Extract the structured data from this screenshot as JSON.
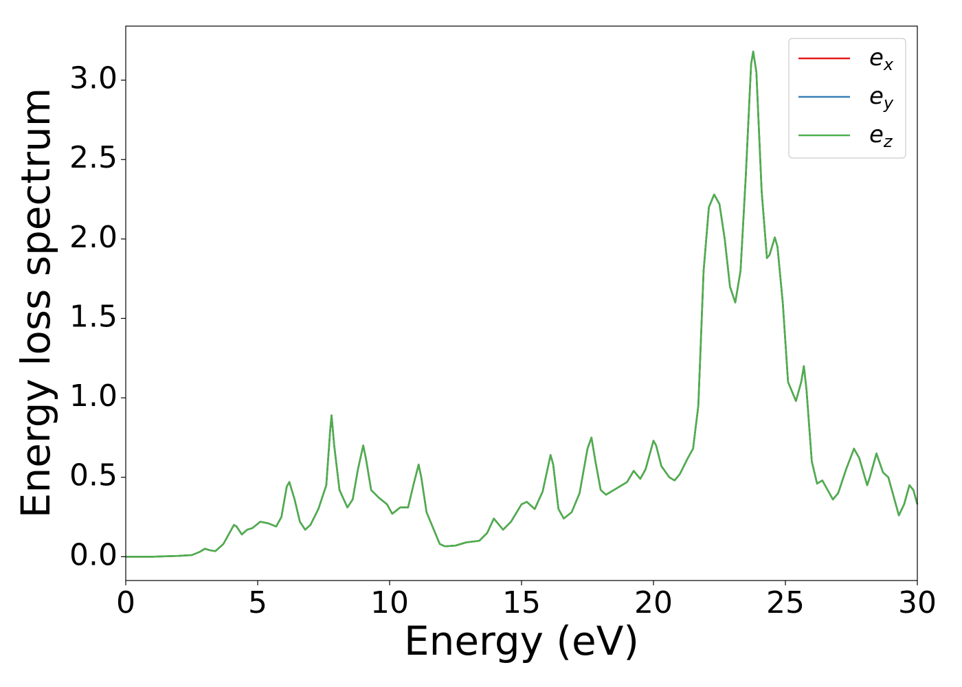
{
  "chart_data": {
    "type": "line",
    "xlabel": "Energy (eV)",
    "ylabel": "Energy loss spectrum",
    "xlim": [
      0,
      30
    ],
    "ylim": [
      -0.15,
      3.34
    ],
    "xticks": [
      0,
      5,
      10,
      15,
      20,
      25,
      30
    ],
    "yticks": [
      {
        "value": 0,
        "label": "0.0"
      },
      {
        "value": 0.5,
        "label": "0.5"
      },
      {
        "value": 1,
        "label": "1.0"
      },
      {
        "value": 1.5,
        "label": "1.5"
      },
      {
        "value": 2,
        "label": "2.0"
      },
      {
        "value": 2.5,
        "label": "2.5"
      },
      {
        "value": 3,
        "label": "3.0"
      }
    ],
    "legend": "upper right",
    "x": [
      0,
      1,
      2,
      2.5,
      2.8,
      3.0,
      3.2,
      3.4,
      3.7,
      4.0,
      4.1,
      4.2,
      4.4,
      4.6,
      4.8,
      5.1,
      5.4,
      5.7,
      5.9,
      6.1,
      6.2,
      6.4,
      6.6,
      6.8,
      7.0,
      7.3,
      7.6,
      7.75,
      7.8,
      7.9,
      8.1,
      8.4,
      8.6,
      8.8,
      9.0,
      9.1,
      9.3,
      9.6,
      9.9,
      10.1,
      10.4,
      10.7,
      10.9,
      11.1,
      11.2,
      11.4,
      11.6,
      11.9,
      12.1,
      12.5,
      12.9,
      13.4,
      13.7,
      13.95,
      14.3,
      14.6,
      15.0,
      15.2,
      15.5,
      15.8,
      16.1,
      16.2,
      16.4,
      16.6,
      16.9,
      17.2,
      17.5,
      17.65,
      17.8,
      18.0,
      18.2,
      18.6,
      19.0,
      19.25,
      19.5,
      19.7,
      20.0,
      20.1,
      20.3,
      20.6,
      20.8,
      21.0,
      21.3,
      21.5,
      21.7,
      21.9,
      22.1,
      22.3,
      22.5,
      22.7,
      22.9,
      23.1,
      23.3,
      23.5,
      23.7,
      23.78,
      23.9,
      24.1,
      24.3,
      24.4,
      24.6,
      24.7,
      24.9,
      25.1,
      25.4,
      25.6,
      25.7,
      25.8,
      26.0,
      26.2,
      26.4,
      26.6,
      26.8,
      27.0,
      27.3,
      27.6,
      27.8,
      28.1,
      28.2,
      28.45,
      28.7,
      28.9,
      29.1,
      29.3,
      29.5,
      29.7,
      29.85,
      30.0
    ],
    "series": [
      {
        "name": "ex",
        "color": "#e41a1c",
        "values": [
          0,
          0,
          0.005,
          0.01,
          0.03,
          0.05,
          0.04,
          0.035,
          0.08,
          0.17,
          0.2,
          0.19,
          0.14,
          0.17,
          0.18,
          0.22,
          0.21,
          0.19,
          0.25,
          0.44,
          0.47,
          0.36,
          0.22,
          0.17,
          0.2,
          0.3,
          0.45,
          0.8,
          0.89,
          0.7,
          0.42,
          0.31,
          0.36,
          0.55,
          0.7,
          0.62,
          0.42,
          0.37,
          0.33,
          0.27,
          0.31,
          0.31,
          0.45,
          0.58,
          0.5,
          0.28,
          0.2,
          0.08,
          0.065,
          0.07,
          0.09,
          0.1,
          0.15,
          0.24,
          0.17,
          0.22,
          0.33,
          0.345,
          0.3,
          0.41,
          0.64,
          0.58,
          0.3,
          0.24,
          0.28,
          0.4,
          0.68,
          0.75,
          0.6,
          0.42,
          0.39,
          0.43,
          0.47,
          0.54,
          0.49,
          0.55,
          0.73,
          0.7,
          0.57,
          0.5,
          0.48,
          0.52,
          0.62,
          0.68,
          0.95,
          1.8,
          2.2,
          2.28,
          2.22,
          2.0,
          1.7,
          1.6,
          1.8,
          2.4,
          3.1,
          3.18,
          3.05,
          2.3,
          1.88,
          1.9,
          2.01,
          1.95,
          1.6,
          1.1,
          0.98,
          1.1,
          1.2,
          1.05,
          0.6,
          0.46,
          0.48,
          0.42,
          0.36,
          0.4,
          0.55,
          0.68,
          0.62,
          0.45,
          0.5,
          0.65,
          0.53,
          0.5,
          0.38,
          0.26,
          0.33,
          0.45,
          0.42,
          0.33
        ]
      },
      {
        "name": "ey",
        "color": "#377eb8",
        "values": [
          0,
          0,
          0.005,
          0.01,
          0.03,
          0.05,
          0.04,
          0.035,
          0.08,
          0.17,
          0.2,
          0.19,
          0.14,
          0.17,
          0.18,
          0.22,
          0.21,
          0.19,
          0.25,
          0.44,
          0.47,
          0.36,
          0.22,
          0.17,
          0.2,
          0.3,
          0.45,
          0.8,
          0.89,
          0.7,
          0.42,
          0.31,
          0.36,
          0.55,
          0.7,
          0.62,
          0.42,
          0.37,
          0.33,
          0.27,
          0.31,
          0.31,
          0.45,
          0.58,
          0.5,
          0.28,
          0.2,
          0.08,
          0.065,
          0.07,
          0.09,
          0.1,
          0.15,
          0.24,
          0.17,
          0.22,
          0.33,
          0.345,
          0.3,
          0.41,
          0.64,
          0.58,
          0.3,
          0.24,
          0.28,
          0.4,
          0.68,
          0.75,
          0.6,
          0.42,
          0.39,
          0.43,
          0.47,
          0.54,
          0.49,
          0.55,
          0.73,
          0.7,
          0.57,
          0.5,
          0.48,
          0.52,
          0.62,
          0.68,
          0.95,
          1.8,
          2.2,
          2.28,
          2.22,
          2.0,
          1.7,
          1.6,
          1.8,
          2.4,
          3.1,
          3.18,
          3.05,
          2.3,
          1.88,
          1.9,
          2.01,
          1.95,
          1.6,
          1.1,
          0.98,
          1.1,
          1.2,
          1.05,
          0.6,
          0.46,
          0.48,
          0.42,
          0.36,
          0.4,
          0.55,
          0.68,
          0.62,
          0.45,
          0.5,
          0.65,
          0.53,
          0.5,
          0.38,
          0.26,
          0.33,
          0.45,
          0.42,
          0.33
        ]
      },
      {
        "name": "ez",
        "color": "#4daf4a",
        "values": [
          0,
          0,
          0.005,
          0.01,
          0.03,
          0.05,
          0.04,
          0.035,
          0.08,
          0.17,
          0.2,
          0.19,
          0.14,
          0.17,
          0.18,
          0.22,
          0.21,
          0.19,
          0.25,
          0.44,
          0.47,
          0.36,
          0.22,
          0.17,
          0.2,
          0.3,
          0.45,
          0.8,
          0.89,
          0.7,
          0.42,
          0.31,
          0.36,
          0.55,
          0.7,
          0.62,
          0.42,
          0.37,
          0.33,
          0.27,
          0.31,
          0.31,
          0.45,
          0.58,
          0.5,
          0.28,
          0.2,
          0.08,
          0.065,
          0.07,
          0.09,
          0.1,
          0.15,
          0.24,
          0.17,
          0.22,
          0.33,
          0.345,
          0.3,
          0.41,
          0.64,
          0.58,
          0.3,
          0.24,
          0.28,
          0.4,
          0.68,
          0.75,
          0.6,
          0.42,
          0.39,
          0.43,
          0.47,
          0.54,
          0.49,
          0.55,
          0.73,
          0.7,
          0.57,
          0.5,
          0.48,
          0.52,
          0.62,
          0.68,
          0.95,
          1.8,
          2.2,
          2.28,
          2.22,
          2.0,
          1.7,
          1.6,
          1.8,
          2.4,
          3.1,
          3.18,
          3.05,
          2.3,
          1.88,
          1.9,
          2.01,
          1.95,
          1.6,
          1.1,
          0.98,
          1.1,
          1.2,
          1.05,
          0.6,
          0.46,
          0.48,
          0.42,
          0.36,
          0.4,
          0.55,
          0.68,
          0.62,
          0.45,
          0.5,
          0.65,
          0.53,
          0.5,
          0.38,
          0.26,
          0.33,
          0.45,
          0.42,
          0.33
        ]
      }
    ]
  }
}
